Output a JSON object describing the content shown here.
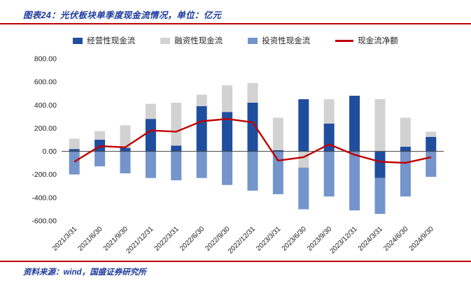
{
  "header": {
    "title": "图表24：光伏板块单季度现金流情况，单位：亿元"
  },
  "colors": {
    "accent_red": "#c00000",
    "title_blue": "#1c3a9e"
  },
  "legend": {
    "items": [
      {
        "label": "经营性现金流",
        "color": "#1f4e9f",
        "type": "bar"
      },
      {
        "label": "融资性现金流",
        "color": "#d2d2d2",
        "type": "bar"
      },
      {
        "label": "投资性现金流",
        "color": "#7494cb",
        "type": "bar"
      },
      {
        "label": "现金流净额",
        "color": "#c00000",
        "type": "line"
      }
    ]
  },
  "footer": {
    "source": "资料来源：wind，国盛证券研究所"
  },
  "chart_data": {
    "type": "bar",
    "subtype": "stacked-bars-with-net-line",
    "title": "光伏板块单季度现金流情况",
    "unit": "亿元",
    "categories": [
      "2021/3/31",
      "2021/6/30",
      "2021/9/30",
      "2021/12/31",
      "2022/3/31",
      "2022/6/30",
      "2022/9/30",
      "2022/12/31",
      "2023/3/31",
      "2023/6/30",
      "2023/9/30",
      "2023/12/31",
      "2024/3/31",
      "2024/6/30",
      "2024/9/30"
    ],
    "series": [
      {
        "name": "经营性现金流",
        "color": "#1f4e9f",
        "values": [
          20,
          100,
          30,
          280,
          50,
          390,
          340,
          420,
          10,
          450,
          240,
          480,
          -230,
          40,
          125
        ]
      },
      {
        "name": "融资性现金流",
        "color": "#d2d2d2",
        "values": [
          90,
          75,
          195,
          130,
          370,
          100,
          230,
          170,
          280,
          -140,
          210,
          0,
          450,
          250,
          45
        ]
      },
      {
        "name": "投资性现金流",
        "color": "#7494cb",
        "values": [
          -200,
          -130,
          -190,
          -230,
          -250,
          -230,
          -290,
          -340,
          -370,
          -360,
          -390,
          -510,
          -310,
          -390,
          -220
        ]
      }
    ],
    "line_series": {
      "name": "现金流净额",
      "color": "#c00000",
      "values": [
        -90,
        45,
        35,
        180,
        170,
        260,
        280,
        250,
        -80,
        -50,
        60,
        -30,
        -90,
        -100,
        -50
      ]
    },
    "ylim": [
      -600,
      800
    ],
    "ytick_values": [
      800,
      600,
      400,
      200,
      0,
      -200,
      -400,
      -600
    ],
    "ytick_labels": [
      "800.00",
      "600.00",
      "400.00",
      "200.00",
      "0.00",
      "-200.00",
      "-400.00",
      "-600.00"
    ],
    "grid": false,
    "legend_position": "top",
    "xlabel": "",
    "ylabel": ""
  }
}
